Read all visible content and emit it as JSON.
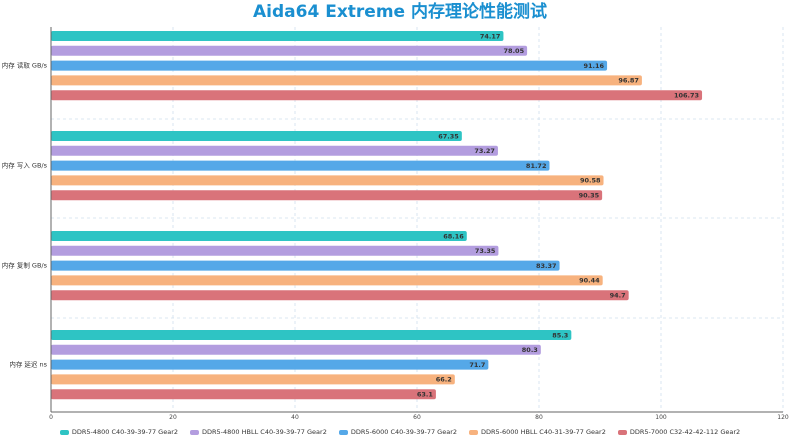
{
  "chart_data": {
    "type": "bar",
    "orientation": "horizontal",
    "title": "Aida64 Extreme 内存理论性能测试",
    "categories": [
      "内存 读取 GB/s",
      "内存 写入 GB/s",
      "内存 复制 GB/s",
      "内存 延迟 ns"
    ],
    "series": [
      {
        "name": "DDR5-4800 C40-39-39-77 Gear2",
        "color": "#2ec4c4",
        "values": [
          74.17,
          67.35,
          68.16,
          85.3
        ],
        "labels": [
          "74.17",
          "67.35",
          "68.16",
          "85.3"
        ]
      },
      {
        "name": "DDR5-4800 HBLL C40-39-39-77 Gear2",
        "color": "#b39ddf",
        "values": [
          78.05,
          73.27,
          73.35,
          80.3
        ],
        "labels": [
          "78.05",
          "73.27",
          "73.35",
          "80.3"
        ]
      },
      {
        "name": "DDR5-6000 C40-39-39-77 Gear2",
        "color": "#55a8e8",
        "values": [
          91.16,
          81.72,
          83.37,
          71.7
        ],
        "labels": [
          "91.16",
          "81.72",
          "83.37",
          "71.7"
        ]
      },
      {
        "name": "DDR5-6000 HBLL C40-31-39-77 Gear2",
        "color": "#f7b27e",
        "values": [
          96.87,
          90.58,
          90.44,
          66.2
        ],
        "labels": [
          "96.87",
          "90.58",
          "90.44",
          "66.2"
        ]
      },
      {
        "name": "DDR5-7000 C32-42-42-112 Gear2",
        "color": "#d9737a",
        "values": [
          106.73,
          90.35,
          94.7,
          63.1
        ],
        "labels": [
          "106.73",
          "90.35",
          "94.7",
          "63.1"
        ]
      }
    ],
    "xlim": [
      0,
      120
    ],
    "xticks": [
      "0",
      "20",
      "40",
      "60",
      "80",
      "100",
      "120"
    ],
    "grid": true,
    "legend_position": "bottom"
  }
}
